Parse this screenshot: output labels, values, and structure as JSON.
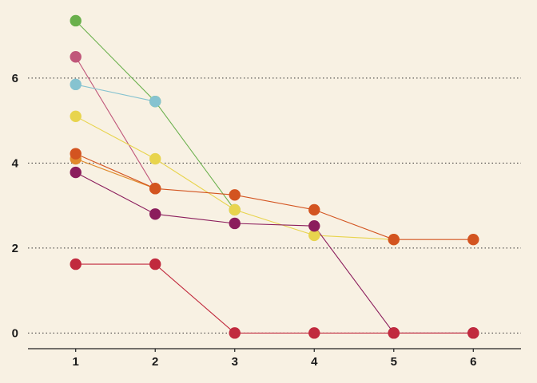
{
  "chart_data": {
    "type": "line",
    "title": "",
    "xlabel": "",
    "ylabel": "",
    "xlim": [
      0.4,
      6.6
    ],
    "ylim": [
      -0.35,
      7.65
    ],
    "x_ticks": [
      1,
      2,
      3,
      4,
      5,
      6
    ],
    "y_ticks": [
      0,
      2,
      4,
      6
    ],
    "grid": "horizontal-dotted",
    "legend": "none",
    "background_color": "#f8f1e3",
    "series": [
      {
        "color": "#6ab04c",
        "x": [
          1,
          2,
          3
        ],
        "y": [
          7.35,
          5.45,
          2.9
        ]
      },
      {
        "color": "#c0577a",
        "x": [
          1,
          2
        ],
        "y": [
          6.5,
          3.4
        ]
      },
      {
        "color": "#86c3d0",
        "x": [
          1,
          2
        ],
        "y": [
          5.85,
          5.45
        ]
      },
      {
        "color": "#e8d44d",
        "x": [
          1,
          2,
          3,
          4,
          5
        ],
        "y": [
          5.1,
          4.1,
          2.9,
          2.3,
          2.2
        ]
      },
      {
        "color": "#e08a2c",
        "x": [
          1,
          2
        ],
        "y": [
          4.1,
          3.4
        ]
      },
      {
        "color": "#d35420",
        "x": [
          1,
          2,
          3,
          4,
          5,
          6
        ],
        "y": [
          4.22,
          3.4,
          3.25,
          2.9,
          2.2,
          2.2
        ]
      },
      {
        "color": "#8b1d5c",
        "x": [
          1,
          2,
          3,
          4,
          5,
          6
        ],
        "y": [
          3.78,
          2.8,
          2.58,
          2.52,
          0,
          0
        ]
      },
      {
        "color": "#c12a3e",
        "x": [
          1,
          2,
          3,
          4,
          5,
          6
        ],
        "y": [
          1.62,
          1.62,
          0,
          0,
          0,
          0
        ]
      }
    ]
  }
}
